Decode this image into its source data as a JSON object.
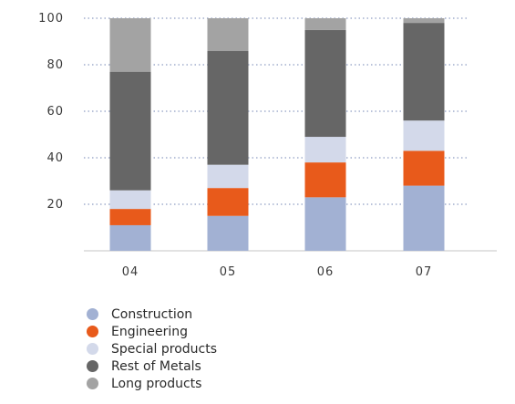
{
  "chart_data": {
    "type": "bar",
    "stacked": true,
    "categories": [
      "04",
      "05",
      "06",
      "07"
    ],
    "ylim": [
      0,
      100
    ],
    "yticks": [
      20,
      40,
      60,
      80,
      100
    ],
    "grid": "dotted-horizontal",
    "legend_position": "bottom",
    "series": [
      {
        "name": "Construction",
        "color": "#a2b1d3",
        "values": [
          11,
          15,
          23,
          28
        ]
      },
      {
        "name": "Engineering",
        "color": "#e85a1b",
        "values": [
          7,
          12,
          15,
          15
        ]
      },
      {
        "name": "Special products",
        "color": "#d3d9ea",
        "values": [
          8,
          10,
          11,
          13
        ]
      },
      {
        "name": "Rest of Metals",
        "color": "#666666",
        "values": [
          51,
          49,
          46,
          42
        ]
      },
      {
        "name": "Long products",
        "color": "#a3a3a3",
        "values": [
          23,
          14,
          5,
          2
        ]
      }
    ]
  }
}
